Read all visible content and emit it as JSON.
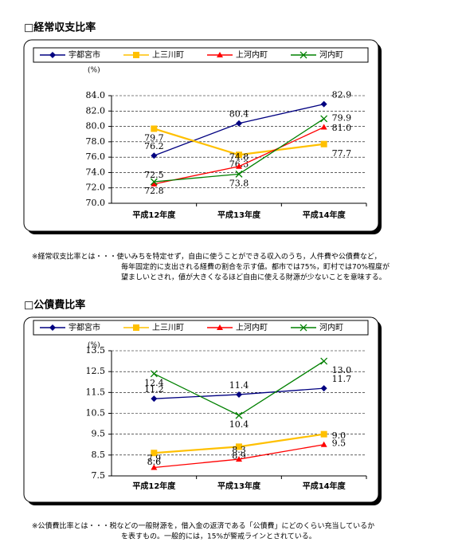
{
  "chart_data": [
    {
      "type": "line",
      "title": "□経常収支比率",
      "y_label": "(%)",
      "categories": [
        "平成12年度",
        "平成13年度",
        "平成14年度"
      ],
      "ylim": [
        70,
        84
      ],
      "yticks": [
        {
          "value": 70,
          "label": "70.0"
        },
        {
          "value": 72,
          "label": "72.0"
        },
        {
          "value": 74,
          "label": "74.0"
        },
        {
          "value": 76,
          "label": "76.0"
        },
        {
          "value": 78,
          "label": "78.0"
        },
        {
          "value": 80,
          "label": "80.0"
        },
        {
          "value": 82,
          "label": "82.0"
        },
        {
          "value": 84,
          "label": "84.0"
        }
      ],
      "grid": true,
      "series": [
        {
          "name": "宇都宮市",
          "color": "#000080",
          "marker": "diamond",
          "values": [
            76.2,
            80.4,
            82.9
          ],
          "value_labels": [
            "76.2",
            "80.4",
            "82.9"
          ]
        },
        {
          "name": "上三川町",
          "color": "#ffc000",
          "marker": "square",
          "values": [
            79.7,
            76.3,
            77.7
          ],
          "value_labels": [
            "79.7",
            "76.3",
            "77.7"
          ]
        },
        {
          "name": "上河内町",
          "color": "#ff0000",
          "marker": "triangle",
          "values": [
            72.5,
            74.8,
            79.9
          ],
          "value_labels": [
            "72.5",
            "74.8",
            "79.9"
          ]
        },
        {
          "name": "河内町",
          "color": "#008000",
          "marker": "x",
          "values": [
            72.8,
            73.8,
            81.0
          ],
          "value_labels": [
            "72.8",
            "73.8",
            "81.0"
          ]
        }
      ]
    },
    {
      "type": "line",
      "title": "□公債費比率",
      "y_label": "(%)",
      "categories": [
        "平成12年度",
        "平成13年度",
        "平成14年度"
      ],
      "ylim": [
        7.5,
        13.5
      ],
      "yticks": [
        7.5,
        8.5,
        9.5,
        10.5,
        11.5,
        12.5,
        13.5
      ],
      "grid": true,
      "series": [
        {
          "name": "宇都宮市",
          "color": "#000080",
          "marker": "diamond",
          "values": [
            11.2,
            11.4,
            11.7
          ],
          "value_labels": [
            "11.2",
            "11.4",
            "11.7"
          ]
        },
        {
          "name": "上三川町",
          "color": "#ffc000",
          "marker": "square",
          "values": [
            8.6,
            8.9,
            9.5
          ],
          "value_labels": [
            "8.6",
            "8.9",
            "9.5"
          ]
        },
        {
          "name": "上河内町",
          "color": "#ff0000",
          "marker": "triangle",
          "values": [
            7.9,
            8.3,
            9.0
          ],
          "value_labels": [
            "7.9",
            "8.3",
            "9.0"
          ]
        },
        {
          "name": "河内町",
          "color": "#008000",
          "marker": "x",
          "values": [
            12.4,
            10.4,
            13.0
          ],
          "value_labels": [
            "12.4",
            "10.4",
            "13.0"
          ]
        }
      ]
    }
  ],
  "notes": [
    [
      "※経常収支比率とは・・・使いみちを特定せず，自由に使うことができる収入のうち，人件費や公債費など，",
      "毎年固定的に支出される経費の割合を示す値。都市では75%，町村では70%程度が",
      "望ましいとされ，値が大きくなるほど自由に使える財源が少ないことを意味する。"
    ],
    [
      "※公債費比率とは・・・税などの一般財源を，借入金の返済である「公債費」にどのくらい充当しているか",
      "を表すもの。一般的には，15%が警戒ラインとされている。"
    ]
  ]
}
